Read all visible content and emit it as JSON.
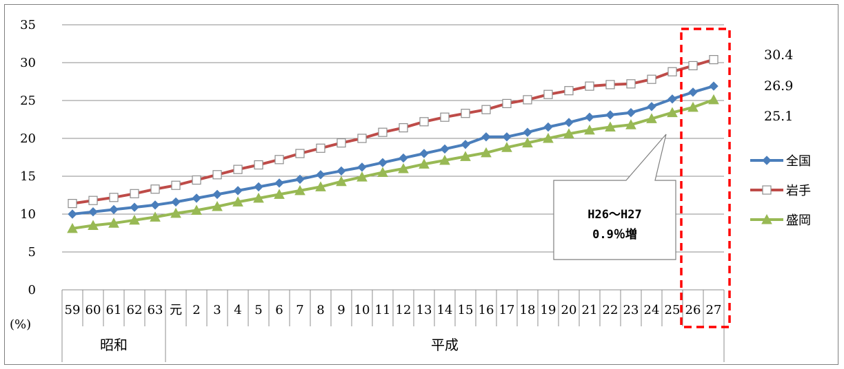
{
  "chart_data": {
    "type": "line",
    "y_unit_label": "(%)",
    "ylim": [
      0,
      35
    ],
    "y_ticks": [
      0,
      5,
      10,
      15,
      20,
      25,
      30,
      35
    ],
    "grid": true,
    "legend_position": "right",
    "categories": [
      "59",
      "60",
      "61",
      "62",
      "63",
      "元",
      "2",
      "3",
      "4",
      "5",
      "6",
      "7",
      "8",
      "9",
      "10",
      "11",
      "12",
      "13",
      "14",
      "15",
      "16",
      "17",
      "18",
      "19",
      "20",
      "21",
      "22",
      "23",
      "24",
      "25",
      "26",
      "27"
    ],
    "eras": [
      {
        "label": "昭和",
        "count": 5
      },
      {
        "label": "平成",
        "count": 27
      }
    ],
    "series": [
      {
        "name": "全国",
        "color": "#4a7ebb",
        "marker": "diamond",
        "values": [
          10.0,
          10.3,
          10.6,
          10.9,
          11.2,
          11.6,
          12.1,
          12.6,
          13.1,
          13.6,
          14.1,
          14.6,
          15.2,
          15.7,
          16.2,
          16.8,
          17.4,
          18.0,
          18.6,
          19.2,
          20.2,
          20.2,
          20.8,
          21.5,
          22.1,
          22.8,
          23.1,
          23.4,
          24.2,
          25.2,
          26.1,
          26.9
        ]
      },
      {
        "name": "岩手",
        "color": "#be4b48",
        "marker": "square",
        "values": [
          11.4,
          11.8,
          12.2,
          12.7,
          13.3,
          13.8,
          14.5,
          15.2,
          15.9,
          16.5,
          17.2,
          18.0,
          18.7,
          19.4,
          20.0,
          20.8,
          21.4,
          22.2,
          22.8,
          23.3,
          23.8,
          24.6,
          25.1,
          25.8,
          26.3,
          26.9,
          27.1,
          27.2,
          27.8,
          28.8,
          29.6,
          30.4
        ]
      },
      {
        "name": "盛岡",
        "color": "#98b954",
        "marker": "triangle",
        "values": [
          8.1,
          8.5,
          8.8,
          9.2,
          9.6,
          10.1,
          10.5,
          11.0,
          11.6,
          12.1,
          12.6,
          13.1,
          13.6,
          14.3,
          14.9,
          15.5,
          16.0,
          16.6,
          17.1,
          17.6,
          18.1,
          18.8,
          19.4,
          20.0,
          20.6,
          21.1,
          21.5,
          21.8,
          22.6,
          23.4,
          24.1,
          25.1
        ]
      }
    ],
    "end_labels": [
      "30.4",
      "26.9",
      "25.1"
    ],
    "annotation": {
      "line1": "H26～H27",
      "line2": "0.9％増"
    },
    "highlight": {
      "from_category": "26",
      "to_category": "27",
      "color": "#ff0000"
    }
  }
}
